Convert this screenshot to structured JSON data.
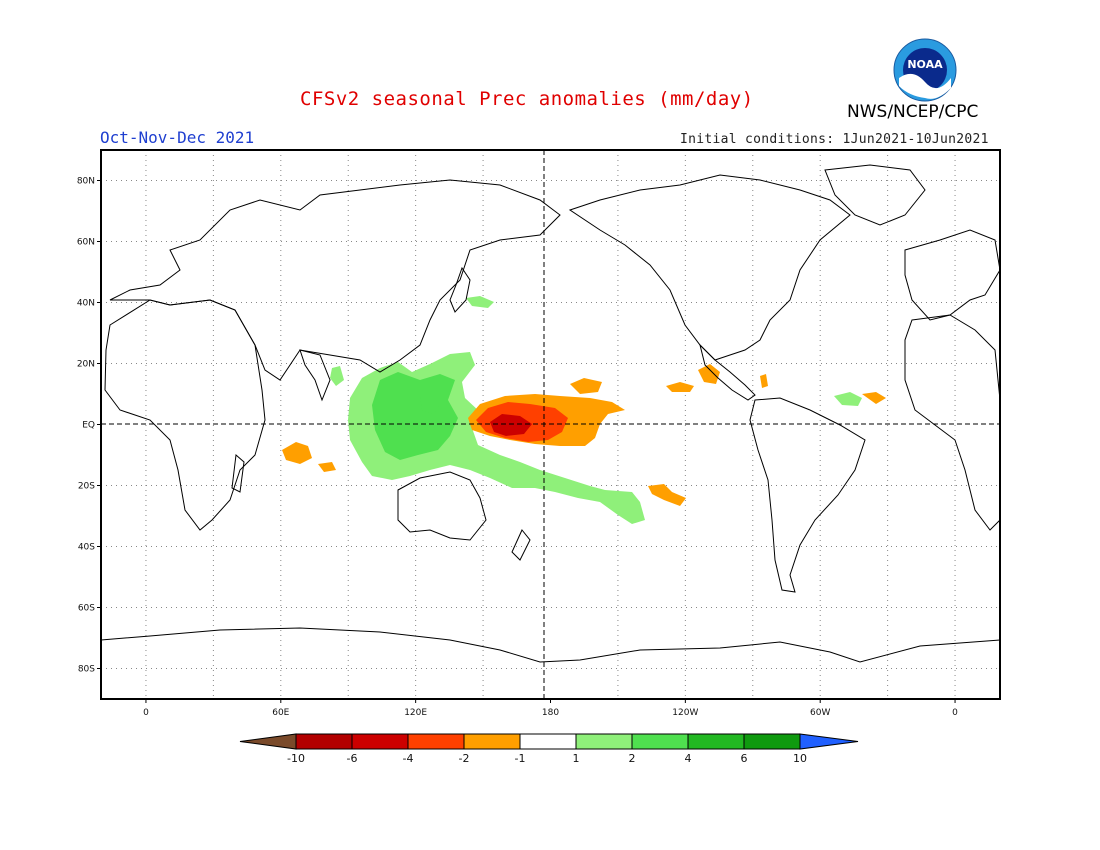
{
  "header": {
    "title": "CFSv2 seasonal Prec anomalies (mm/day)",
    "agency": "NWS/NCEP/CPC",
    "season": "Oct-Nov-Dec 2021",
    "initial_conditions": "Initial conditions: 1Jun2021-10Jun2021",
    "logo_text": "NOAA"
  },
  "map": {
    "projection": "cylindrical-equidistant",
    "lon_range": [
      -20,
      380
    ],
    "lat_range": [
      -90,
      90
    ],
    "lat_labels": [
      "80N",
      "60N",
      "40N",
      "20N",
      "EQ",
      "20S",
      "40S",
      "60S",
      "80S"
    ],
    "lon_labels": [
      "0",
      "60E",
      "120E",
      "180",
      "120W",
      "60W",
      "0"
    ],
    "grid": "dotted",
    "reference_lines": [
      "EQ",
      "180"
    ]
  },
  "colorbar": {
    "labels": [
      "-10",
      "-6",
      "-4",
      "-2",
      "-1",
      "1",
      "2",
      "4",
      "6",
      "10"
    ],
    "colors": [
      "#7a4a2a",
      "#b20000",
      "#cc0000",
      "#ff4000",
      "#ff9f00",
      "#ffffff",
      "#8ff07a",
      "#4fe04f",
      "#22b822",
      "#0f9a0f",
      "#2060ff"
    ]
  }
}
